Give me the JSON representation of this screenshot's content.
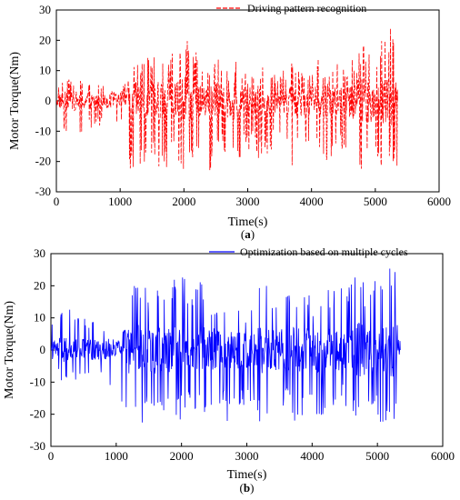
{
  "chart_data": [
    {
      "type": "line",
      "panel": "(a)",
      "xlabel": "Time(s)",
      "ylabel": "Motor Torque(Nm)",
      "xlim": [
        0,
        6000
      ],
      "ylim": [
        -30,
        30
      ],
      "xticks": [
        0,
        1000,
        2000,
        3000,
        4000,
        5000,
        6000
      ],
      "yticks": [
        -30,
        -20,
        -10,
        0,
        10,
        20,
        30
      ],
      "legend_position": "top-right",
      "series": [
        {
          "name": "Driving pattern recognition",
          "color": "#ff0000",
          "style": "dashed",
          "x": [
            0,
            150,
            300,
            450,
            600,
            750,
            900,
            1000,
            1100,
            1150,
            1200,
            1300,
            1400,
            1500,
            1600,
            1700,
            1800,
            1900,
            2000,
            2100,
            2200,
            2300,
            2400,
            2500,
            2600,
            2700,
            2800,
            2900,
            3000,
            3100,
            3200,
            3300,
            3400,
            3500,
            3600,
            3700,
            3800,
            3900,
            4000,
            4100,
            4200,
            4300,
            4400,
            4500,
            4600,
            4700,
            4800,
            4900,
            5000,
            5100,
            5200,
            5300,
            5350
          ],
          "max": [
            5,
            8,
            7,
            7,
            6,
            5,
            3,
            3,
            3,
            8,
            12,
            13,
            14,
            15,
            20,
            15,
            16,
            20,
            24,
            17,
            16,
            15,
            12,
            18,
            12,
            10,
            15,
            12,
            16,
            10,
            12,
            12,
            9,
            11,
            10,
            13,
            10,
            11,
            12,
            14,
            12,
            11,
            13,
            12,
            13,
            15,
            20,
            18,
            16,
            22,
            26,
            26,
            3
          ],
          "min": [
            -8,
            -10,
            -11,
            -10,
            -9,
            -8,
            -12,
            -5,
            -23,
            -23,
            -23,
            -23,
            -20,
            -17,
            -23,
            -23,
            -21,
            -23,
            -23,
            -21,
            -23,
            -22,
            -23,
            -23,
            -13,
            -23,
            -21,
            -19,
            -17,
            -14,
            -23,
            -20,
            -15,
            -12,
            -15,
            -23,
            -20,
            -16,
            -17,
            -15,
            -23,
            -19,
            -15,
            -16,
            -20,
            -23,
            -23,
            -23,
            -23,
            -23,
            -23,
            -23,
            -23
          ]
        }
      ]
    },
    {
      "type": "line",
      "panel": "(b)",
      "xlabel": "Time(s)",
      "ylabel": "Motor Torque(Nm)",
      "xlim": [
        0,
        6000
      ],
      "ylim": [
        -30,
        30
      ],
      "xticks": [
        0,
        1000,
        2000,
        3000,
        4000,
        5000,
        6000
      ],
      "yticks": [
        -30,
        -20,
        -10,
        0,
        10,
        20,
        30
      ],
      "legend_position": "top-right",
      "series": [
        {
          "name": "Optimization based on multiple cycles",
          "color": "#0000ff",
          "style": "solid",
          "x": [
            0,
            150,
            300,
            450,
            600,
            750,
            900,
            1000,
            1100,
            1150,
            1200,
            1300,
            1400,
            1500,
            1600,
            1700,
            1800,
            1900,
            2000,
            2100,
            2200,
            2300,
            2400,
            2500,
            2600,
            2700,
            2800,
            2900,
            3000,
            3100,
            3200,
            3300,
            3400,
            3500,
            3600,
            3700,
            3800,
            3900,
            4000,
            4100,
            4200,
            4300,
            4400,
            4500,
            4600,
            4700,
            4800,
            4900,
            5000,
            5100,
            5200,
            5300,
            5350
          ],
          "max": [
            13,
            12,
            13,
            12,
            11,
            9,
            5,
            2,
            2,
            8,
            20,
            25,
            22,
            18,
            21,
            19,
            18,
            25,
            26,
            20,
            18,
            23,
            17,
            18,
            15,
            12,
            16,
            13,
            14,
            12,
            21,
            23,
            19,
            22,
            18,
            17,
            19,
            20,
            17,
            18,
            21,
            22,
            21,
            18,
            22,
            26,
            22,
            26,
            26,
            21,
            26,
            26,
            2
          ],
          "min": [
            -4,
            -10,
            -10,
            -9,
            -9,
            -8,
            -12,
            -6,
            -20,
            -23,
            -23,
            -23,
            -23,
            -17,
            -23,
            -23,
            -21,
            -23,
            -23,
            -21,
            -22,
            -22,
            -23,
            -23,
            -16,
            -23,
            -21,
            -18,
            -17,
            -15,
            -23,
            -26,
            -22,
            -20,
            -18,
            -23,
            -21,
            -20,
            -19,
            -21,
            -22,
            -20,
            -16,
            -18,
            -20,
            -23,
            -23,
            -23,
            -23,
            -23,
            -23,
            -23,
            -23
          ]
        }
      ]
    }
  ]
}
